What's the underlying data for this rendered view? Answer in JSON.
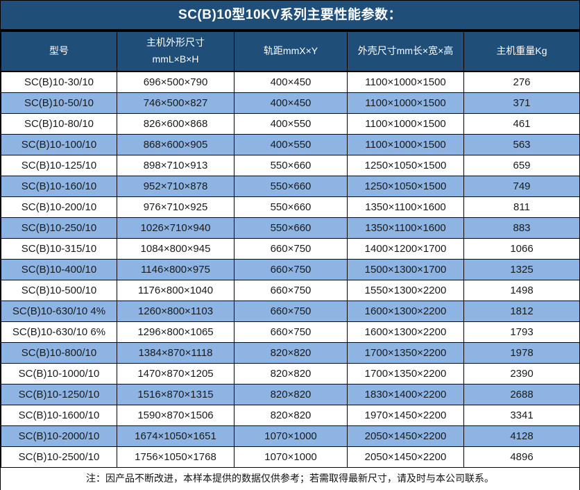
{
  "title": "SC(B)10型10KV系列主要性能参数：",
  "colors": {
    "header_bg": "#1f4e79",
    "header_text": "#ffffff",
    "row_alt_bg": "#8db4e2",
    "row_bg": "#ffffff",
    "grid_border": "#000000",
    "cell_text": "#1a1a1a"
  },
  "table": {
    "columns": [
      {
        "label": "型号"
      },
      {
        "line1": "主机外形尺寸",
        "line2": "mmL×B×H"
      },
      {
        "label": "轨距mmX×Y"
      },
      {
        "label": "外壳尺寸mm长×宽×高"
      },
      {
        "label": "主机重量Kg"
      }
    ],
    "rows": [
      [
        "SC(B)10-30/10",
        "696×500×790",
        "400×450",
        "1100×1000×1500",
        "276"
      ],
      [
        "SC(B)10-50/10",
        "746×500×827",
        "400×450",
        "1100×1000×1500",
        "371"
      ],
      [
        "SC(B)10-80/10",
        "826×600×868",
        "400×550",
        "1100×1000×1500",
        "461"
      ],
      [
        "SC(B)10-100/10",
        "868×600×905",
        "400×550",
        "1100×1000×1500",
        "563"
      ],
      [
        "SC(B)10-125/10",
        "898×710×913",
        "550×660",
        "1250×1050×1500",
        "659"
      ],
      [
        "SC(B)10-160/10",
        "952×710×878",
        "550×660",
        "1250×1050×1500",
        "749"
      ],
      [
        "SC(B)10-200/10",
        "976×710×925",
        "550×660",
        "1350×1100×1600",
        "811"
      ],
      [
        "SC(B)10-250/10",
        "1026×710×940",
        "550×660",
        "1350×1100×1600",
        "883"
      ],
      [
        "SC(B)10-315/10",
        "1084×800×945",
        "660×750",
        "1400×1200×1700",
        "1066"
      ],
      [
        "SC(B)10-400/10",
        "1146×800×975",
        "660×750",
        "1500×1300×1700",
        "1325"
      ],
      [
        "SC(B)10-500/10",
        "1176×800×1040",
        "660×750",
        "1550×1300×2200",
        "1498"
      ],
      [
        "SC(B)10-630/10 4%",
        "1260×800×1103",
        "660×750",
        "1600×1300×2200",
        "1812"
      ],
      [
        "SC(B)10-630/10 6%",
        "1296×800×1065",
        "660×750",
        "1600×1300×2200",
        "1793"
      ],
      [
        "SC(B)10-800/10",
        "1384×870×1118",
        "820×820",
        "1700×1350×2200",
        "1978"
      ],
      [
        "SC(B)10-1000/10",
        "1470×870×1205",
        "820×820",
        "1700×1350×2200",
        "2390"
      ],
      [
        "SC(B)10-1250/10",
        "1516×870×1315",
        "820×820",
        "1830×1400×2200",
        "2688"
      ],
      [
        "SC(B)10-1600/10",
        "1590×870×1506",
        "820×820",
        "1970×1450×2200",
        "3341"
      ],
      [
        "SC(B)10-2000/10",
        "1674×1050×1651",
        "1070×1000",
        "2050×1450×2200",
        "4128"
      ],
      [
        "SC(B)10-2500/10",
        "1756×1050×1768",
        "1070×1000",
        "2050×1450×2200",
        "4896"
      ]
    ]
  },
  "note": "注：因产品不断改进，本样本提供的数据仅供参考；若需取得最新尺寸，请及时与本公司联系。"
}
